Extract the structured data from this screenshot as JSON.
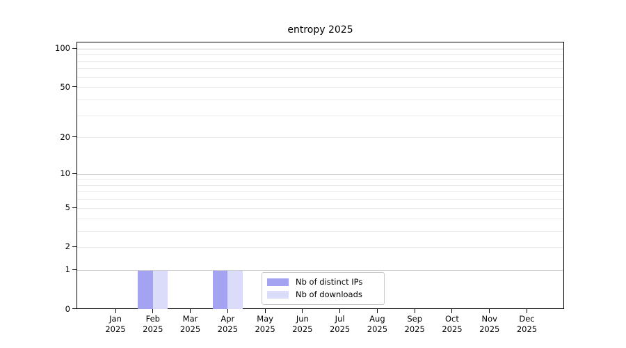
{
  "chart_data": {
    "type": "bar",
    "title": "entropy 2025",
    "x_year": "2025",
    "categories": [
      "Jan",
      "Feb",
      "Mar",
      "Apr",
      "May",
      "Jun",
      "Jul",
      "Aug",
      "Sep",
      "Oct",
      "Nov",
      "Dec"
    ],
    "series": [
      {
        "name": "Nb of distinct IPs",
        "color": "#a3a3f2",
        "values": [
          0,
          1,
          0,
          1,
          0,
          0,
          0,
          0,
          0,
          0,
          0,
          0
        ]
      },
      {
        "name": "Nb of downloads",
        "color": "#dbdbfa",
        "values": [
          0,
          1,
          0,
          1,
          0,
          0,
          0,
          0,
          0,
          0,
          0,
          0
        ]
      }
    ],
    "yscale": "log1p",
    "ylim": [
      0,
      113
    ],
    "yticks": [
      {
        "value": 0,
        "label": "0"
      },
      {
        "value": 1,
        "label": "1"
      },
      {
        "value": 2,
        "label": "2"
      },
      {
        "value": 5,
        "label": "5"
      },
      {
        "value": 10,
        "label": "10"
      },
      {
        "value": 20,
        "label": "20"
      },
      {
        "value": 50,
        "label": "50"
      },
      {
        "value": 100,
        "label": "100"
      }
    ],
    "major_gridlines": [
      1,
      10,
      100
    ],
    "minor_gridlines": [
      2,
      3,
      4,
      5,
      6,
      7,
      8,
      9,
      20,
      30,
      40,
      50,
      60,
      70,
      80,
      90
    ],
    "grid": "both",
    "legend": {
      "position": "lower center",
      "items": [
        {
          "label": "Nb of distinct IPs",
          "color": "#a3a3f2"
        },
        {
          "label": "Nb of downloads",
          "color": "#dbdbfa"
        }
      ]
    },
    "colors": {
      "grid_major": "#cccccc",
      "grid_minor": "#ebebeb",
      "spine": "#000000",
      "background": "#ffffff"
    }
  }
}
